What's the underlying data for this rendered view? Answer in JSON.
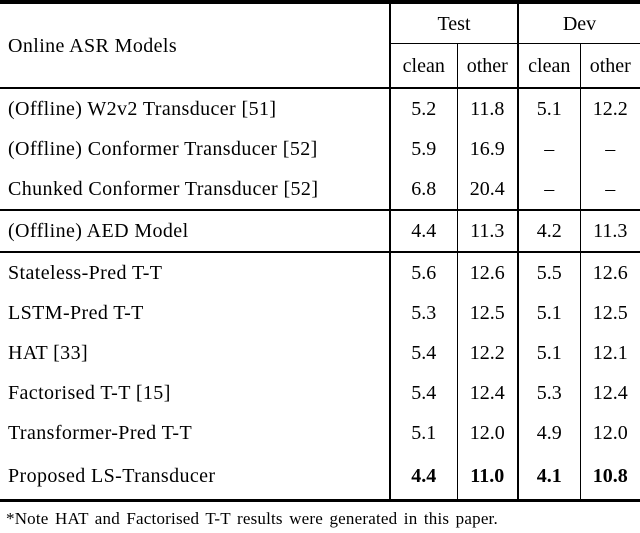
{
  "colors": {
    "text": "#000000",
    "background": "#ffffff",
    "rule": "#000000"
  },
  "table": {
    "header": {
      "models_label": "Online ASR Models",
      "groups": [
        {
          "label": "Test"
        },
        {
          "label": "Dev"
        }
      ],
      "subheaders": [
        "clean",
        "other",
        "clean",
        "other"
      ]
    },
    "sections": [
      {
        "rows": [
          {
            "model": "(Offline) W2v2 Transducer [51]",
            "values": [
              "5.2",
              "11.8",
              "5.1",
              "12.2"
            ],
            "bold": false
          },
          {
            "model": "(Offline) Conformer Transducer [52]",
            "values": [
              "5.9",
              "16.9",
              "–",
              "–"
            ],
            "bold": false
          },
          {
            "model": "Chunked Conformer Transducer [52]",
            "values": [
              "6.8",
              "20.4",
              "–",
              "–"
            ],
            "bold": false
          }
        ]
      },
      {
        "rows": [
          {
            "model": "(Offline) AED Model",
            "values": [
              "4.4",
              "11.3",
              "4.2",
              "11.3"
            ],
            "bold": false
          }
        ]
      },
      {
        "rows": [
          {
            "model": "Stateless-Pred T-T",
            "values": [
              "5.6",
              "12.6",
              "5.5",
              "12.6"
            ],
            "bold": false
          },
          {
            "model": "LSTM-Pred T-T",
            "values": [
              "5.3",
              "12.5",
              "5.1",
              "12.5"
            ],
            "bold": false
          },
          {
            "model": "HAT [33]",
            "values": [
              "5.4",
              "12.2",
              "5.1",
              "12.1"
            ],
            "bold": false
          },
          {
            "model": "Factorised T-T [15]",
            "values": [
              "5.4",
              "12.4",
              "5.3",
              "12.4"
            ],
            "bold": false
          },
          {
            "model": "Transformer-Pred T-T",
            "values": [
              "5.1",
              "12.0",
              "4.9",
              "12.0"
            ],
            "bold": false
          },
          {
            "model": "Proposed LS-Transducer",
            "values": [
              "4.4",
              "11.0",
              "4.1",
              "10.8"
            ],
            "bold": true
          }
        ]
      }
    ],
    "footnote": "*Note HAT and Factorised T-T results were generated in this paper."
  },
  "chart_data": {
    "type": "table",
    "title": "",
    "columns": [
      "Online ASR Models",
      "Test clean",
      "Test other",
      "Dev clean",
      "Dev other"
    ],
    "rows": [
      [
        "(Offline) W2v2 Transducer [51]",
        5.2,
        11.8,
        5.1,
        12.2
      ],
      [
        "(Offline) Conformer Transducer [52]",
        5.9,
        16.9,
        null,
        null
      ],
      [
        "Chunked Conformer Transducer [52]",
        6.8,
        20.4,
        null,
        null
      ],
      [
        "(Offline) AED Model",
        4.4,
        11.3,
        4.2,
        11.3
      ],
      [
        "Stateless-Pred T-T",
        5.6,
        12.6,
        5.5,
        12.6
      ],
      [
        "LSTM-Pred T-T",
        5.3,
        12.5,
        5.1,
        12.5
      ],
      [
        "HAT [33]",
        5.4,
        12.2,
        5.1,
        12.1
      ],
      [
        "Factorised T-T [15]",
        5.4,
        12.4,
        5.3,
        12.4
      ],
      [
        "Transformer-Pred T-T",
        5.1,
        12.0,
        4.9,
        12.0
      ],
      [
        "Proposed LS-Transducer",
        4.4,
        11.0,
        4.1,
        10.8
      ]
    ]
  }
}
